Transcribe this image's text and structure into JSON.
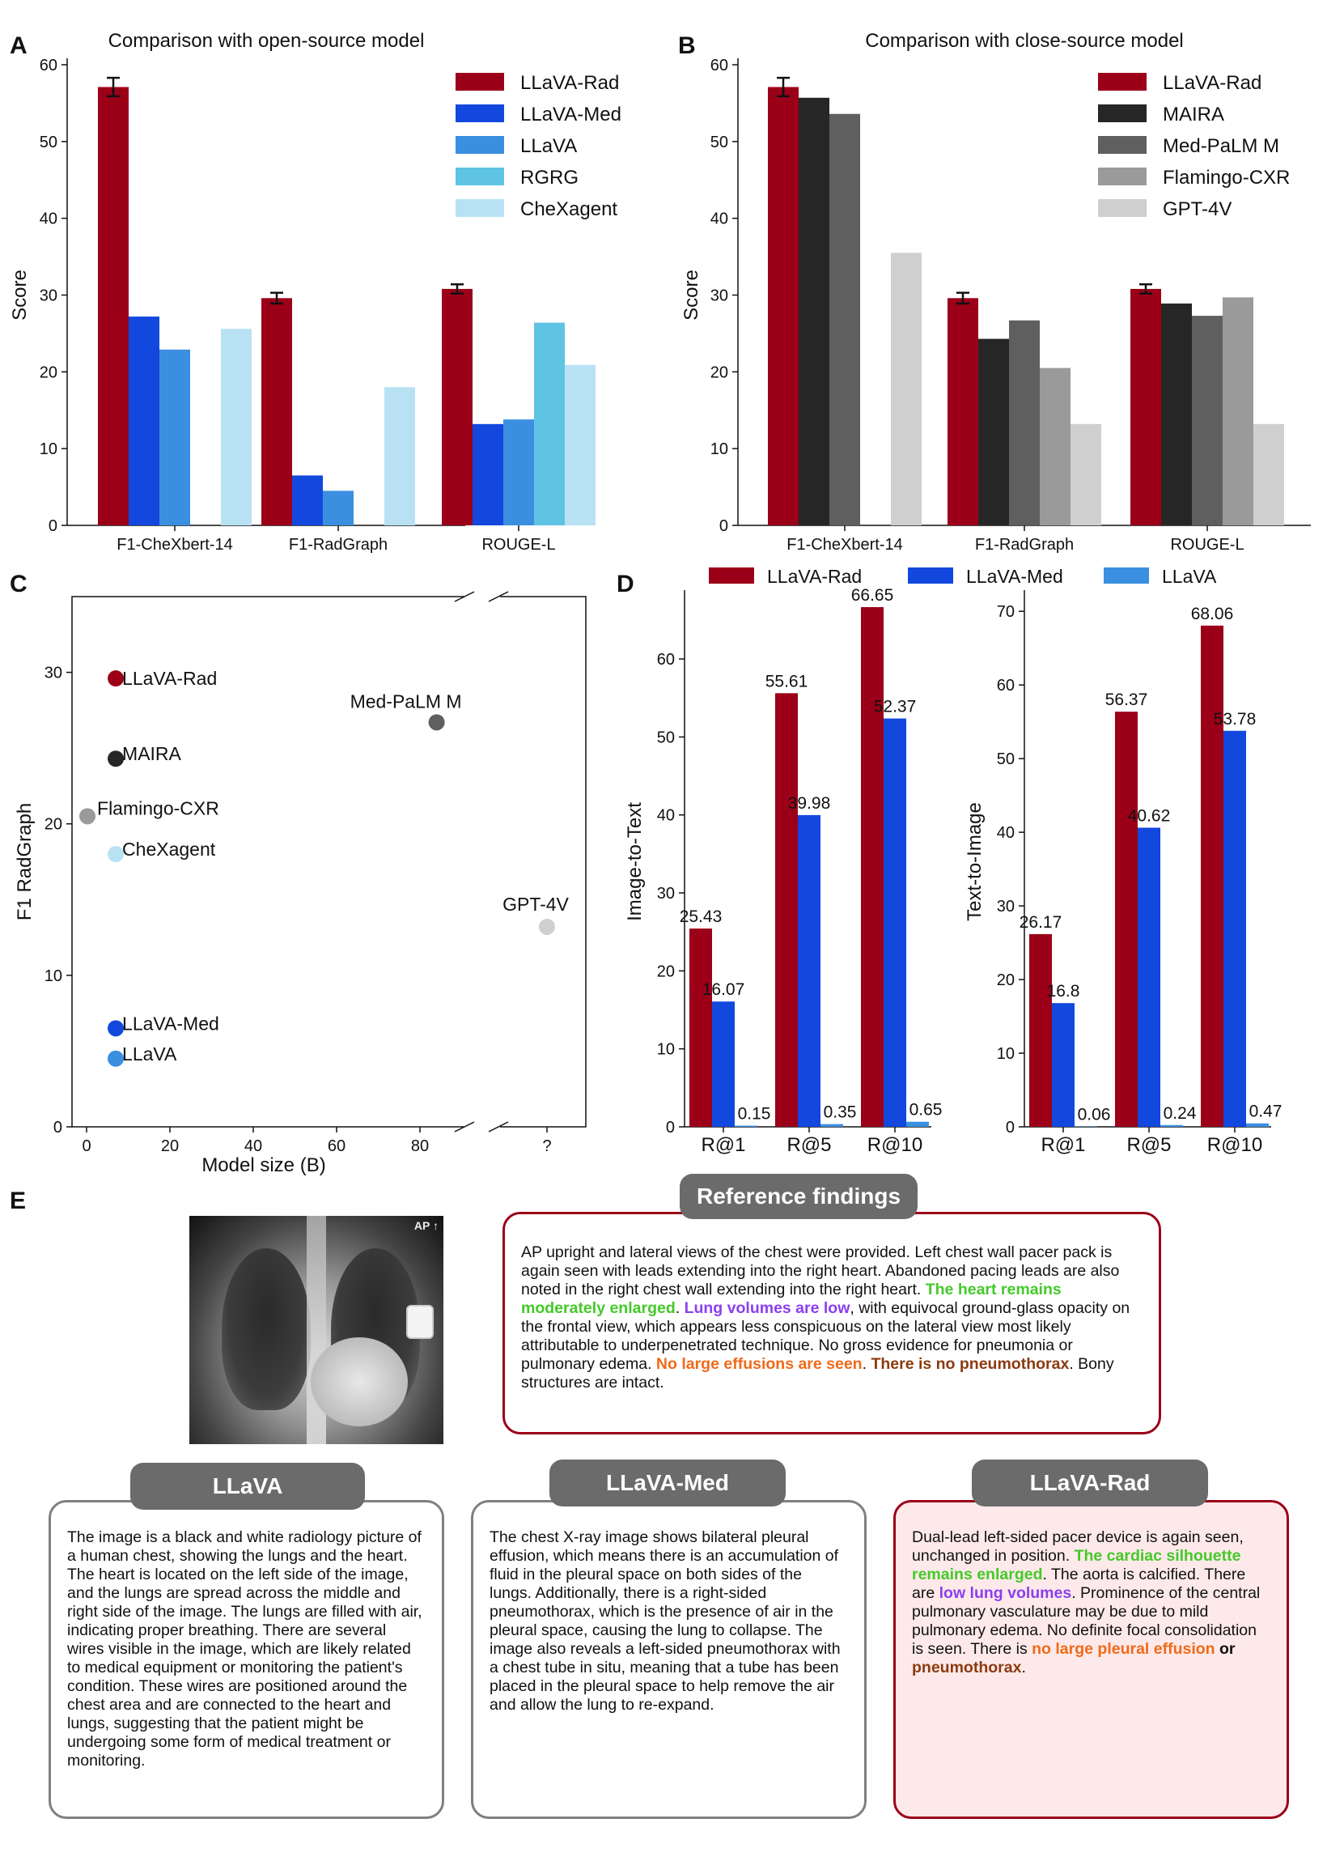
{
  "panel_labels": {
    "a": "A",
    "b": "B",
    "c": "C",
    "d": "D",
    "e": "E"
  },
  "colors": {
    "llava_rad": "#9b0018",
    "llava_med": "#1348de",
    "llava": "#3b8fe0",
    "rgrg": "#5fc3e4",
    "chexagent": "#b8e2f4",
    "maira": "#262626",
    "medpalm": "#5f5f5f",
    "flamingo": "#9a9a9a",
    "gpt4v": "#cfcfcf"
  },
  "chart_data": [
    {
      "id": "A",
      "type": "bar",
      "title": "Comparison with open-source model",
      "ylabel": "Score",
      "ylim": [
        0,
        60
      ],
      "yticks": [
        0,
        10,
        20,
        30,
        40,
        50,
        60
      ],
      "categories": [
        "F1-CheXbert-14",
        "F1-RadGraph",
        "ROUGE-L"
      ],
      "series": [
        {
          "name": "LLaVA-Rad",
          "color": "#9b0018",
          "values": [
            57.1,
            29.6,
            30.8
          ],
          "errors": [
            1.2,
            0.7,
            0.6
          ]
        },
        {
          "name": "LLaVA-Med",
          "color": "#1348de",
          "values": [
            27.2,
            6.5,
            13.2
          ]
        },
        {
          "name": "LLaVA",
          "color": "#3b8fe0",
          "values": [
            22.9,
            4.5,
            13.8
          ]
        },
        {
          "name": "RGRG",
          "color": "#5fc3e4",
          "values": [
            null,
            null,
            26.4
          ]
        },
        {
          "name": "CheXagent",
          "color": "#b8e2f4",
          "values": [
            25.6,
            18.0,
            20.9
          ]
        }
      ]
    },
    {
      "id": "B",
      "type": "bar",
      "title": "Comparison with close-source model",
      "ylabel": "Score",
      "ylim": [
        0,
        60
      ],
      "yticks": [
        0,
        10,
        20,
        30,
        40,
        50,
        60
      ],
      "categories": [
        "F1-CheXbert-14",
        "F1-RadGraph",
        "ROUGE-L"
      ],
      "series": [
        {
          "name": "LLaVA-Rad",
          "color": "#9b0018",
          "values": [
            57.1,
            29.6,
            30.8
          ],
          "errors": [
            1.2,
            0.7,
            0.6
          ]
        },
        {
          "name": "MAIRA",
          "color": "#262626",
          "values": [
            55.7,
            24.3,
            28.9
          ]
        },
        {
          "name": "Med-PaLM M",
          "color": "#5f5f5f",
          "values": [
            53.6,
            26.7,
            27.3
          ]
        },
        {
          "name": "Flamingo-CXR",
          "color": "#9a9a9a",
          "values": [
            null,
            20.5,
            29.7
          ]
        },
        {
          "name": "GPT-4V",
          "color": "#cfcfcf",
          "values": [
            35.5,
            13.2,
            13.2
          ]
        }
      ]
    },
    {
      "id": "C",
      "type": "scatter",
      "xlabel": "Model size (B)",
      "ylabel": "F1 RadGraph",
      "xticks": [
        "0",
        "20",
        "40",
        "60",
        "80",
        "?"
      ],
      "yticks": [
        0,
        10,
        20,
        30
      ],
      "ylim": [
        0,
        35
      ],
      "xlim": [
        -4,
        90
      ],
      "points": [
        {
          "label": "LLaVA-Rad",
          "x": 7,
          "y": 29.6,
          "color": "#9b0018"
        },
        {
          "label": "Med-PaLM M",
          "x": 84,
          "y": 26.7,
          "color": "#5f5f5f"
        },
        {
          "label": "MAIRA",
          "x": 7,
          "y": 24.3,
          "color": "#262626"
        },
        {
          "label": "Flamingo-CXR",
          "x": 0.2,
          "y": 20.5,
          "color": "#9a9a9a"
        },
        {
          "label": "CheXagent",
          "x": 7,
          "y": 18.0,
          "color": "#b8e2f4"
        },
        {
          "label": "GPT-4V",
          "x": "?",
          "y": 13.2,
          "color": "#cfcfcf"
        },
        {
          "label": "LLaVA-Med",
          "x": 7,
          "y": 6.5,
          "color": "#1348de"
        },
        {
          "label": "LLaVA",
          "x": 7,
          "y": 4.5,
          "color": "#3b8fe0"
        }
      ]
    },
    {
      "id": "D1",
      "type": "bar",
      "ylabel": "Image-to-Text",
      "ylim": [
        0,
        68
      ],
      "yticks": [
        0,
        10,
        20,
        30,
        40,
        50,
        60
      ],
      "categories": [
        "R@1",
        "R@5",
        "R@10"
      ],
      "series": [
        {
          "name": "LLaVA-Rad",
          "color": "#9b0018",
          "values": [
            25.43,
            55.61,
            66.65
          ],
          "labels": [
            "25.43",
            "55.61",
            "66.65"
          ]
        },
        {
          "name": "LLaVA-Med",
          "color": "#1348de",
          "values": [
            16.07,
            39.98,
            52.37
          ],
          "labels": [
            "16.07",
            "39.98",
            "52.37"
          ]
        },
        {
          "name": "LLaVA",
          "color": "#3b8fe0",
          "values": [
            0.15,
            0.35,
            0.65
          ],
          "labels": [
            "0.15",
            "0.35",
            "0.65"
          ]
        }
      ]
    },
    {
      "id": "D2",
      "type": "bar",
      "ylabel": "Text-to-Image",
      "ylim": [
        0,
        72
      ],
      "yticks": [
        0,
        10,
        20,
        30,
        40,
        50,
        60,
        70
      ],
      "categories": [
        "R@1",
        "R@5",
        "R@10"
      ],
      "series": [
        {
          "name": "LLaVA-Rad",
          "color": "#9b0018",
          "values": [
            26.17,
            56.37,
            68.06
          ],
          "labels": [
            "26.17",
            "56.37",
            "68.06"
          ]
        },
        {
          "name": "LLaVA-Med",
          "color": "#1348de",
          "values": [
            16.8,
            40.62,
            53.78
          ],
          "labels": [
            "16.8",
            "40.62",
            "53.78"
          ]
        },
        {
          "name": "LLaVA",
          "color": "#3b8fe0",
          "values": [
            0.06,
            0.24,
            0.47
          ],
          "labels": [
            "0.06",
            "0.24",
            "0.47"
          ]
        }
      ]
    }
  ],
  "panel_e": {
    "reference_title": "Reference findings",
    "reference_text": [
      {
        "t": "AP upright and lateral views of the chest were provided.  Left chest wall pacer pack is again seen with leads extending into the right heart. Abandoned pacing leads are also noted in the right chest wall extending into the right heart.  ",
        "c": ""
      },
      {
        "t": "The heart remains moderately enlarged",
        "c": "hl-green"
      },
      {
        "t": ".  ",
        "c": ""
      },
      {
        "t": "Lung volumes are low",
        "c": "hl-purple"
      },
      {
        "t": ", with equivocal ground-glass opacity on the frontal view, which appears less conspicuous on the lateral view most likely attributable to underpenetrated technique.  No gross evidence for pneumonia or pulmonary edema.  ",
        "c": ""
      },
      {
        "t": "No large effusions are seen",
        "c": "hl-orange"
      },
      {
        "t": ".  ",
        "c": ""
      },
      {
        "t": "There is no pneumothorax",
        "c": "hl-brown"
      },
      {
        "t": ".  Bony structures are intact.",
        "c": ""
      }
    ],
    "xray_marker": "AP ↑",
    "llava_title": "LLaVA",
    "llava_text": [
      {
        "t": "The image is a black and white radiology picture of a human chest, showing the lungs and the heart. The heart is located on the left side of the image, and the lungs are spread across the middle and right side of the image. The lungs are filled with air, indicating proper breathing. There are several wires visible in the image, which are likely related to medical equipment or monitoring the patient's condition. These wires are positioned around the chest area and are connected to the heart and lungs, suggesting that the patient might be undergoing some form of medical treatment or monitoring.",
        "c": ""
      }
    ],
    "llava_med_title": "LLaVA-Med",
    "llava_med_text": [
      {
        "t": "The chest X-ray image shows bilateral pleural effusion, which means there is an accumulation of fluid in the pleural space on both sides of the lungs. Additionally, there is a right-sided pneumothorax, which is the presence of air in the pleural space, causing the lung to collapse. The image also reveals a left-sided pneumothorax with a chest tube in situ, meaning that a tube has been placed in the pleural space to help remove the air and allow the lung to re-expand.",
        "c": ""
      }
    ],
    "llava_rad_title": "LLaVA-Rad",
    "llava_rad_text": [
      {
        "t": "Dual-lead left-sided pacer device is again seen, unchanged in position.  ",
        "c": ""
      },
      {
        "t": "The cardiac silhouette remains enlarged",
        "c": "hl-green"
      },
      {
        "t": ".  The aorta is calcified.  There are ",
        "c": ""
      },
      {
        "t": "low lung volumes",
        "c": "hl-purple"
      },
      {
        "t": ".  Prominence of the central pulmonary vasculature may be due to mild pulmonary edema.  No definite focal consolidation is seen.  There is ",
        "c": ""
      },
      {
        "t": "no large pleural effusion",
        "c": "hl-orange"
      },
      {
        "t": " or ",
        "c": "hl-black"
      },
      {
        "t": "pneumothorax",
        "c": "hl-brown"
      },
      {
        "t": ".",
        "c": ""
      }
    ]
  }
}
